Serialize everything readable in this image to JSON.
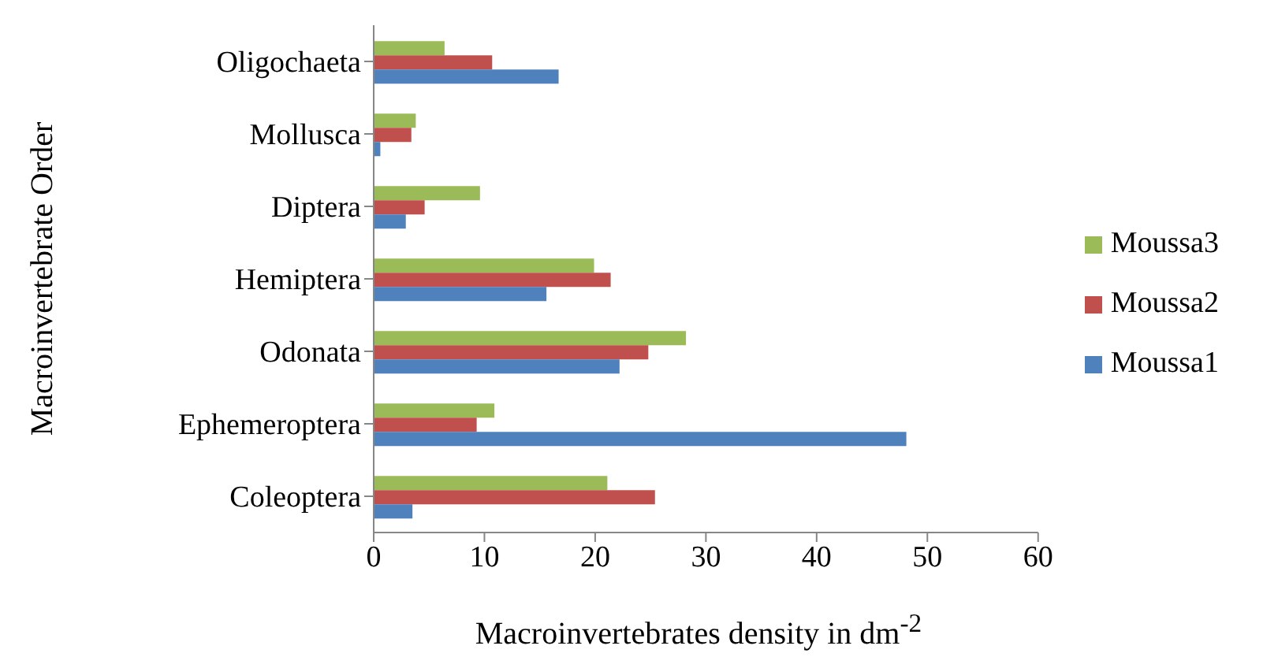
{
  "chart_data": {
    "type": "bar",
    "orientation": "horizontal",
    "xlabel": "Macroinvertebrates density in dm$^{-2}$",
    "ylabel": "Macroinvertebrate Order",
    "categories": [
      "Oligochaeta",
      "Mollusca",
      "Diptera",
      "Hemiptera",
      "Odonata",
      "Ephemeroptera",
      "Coleoptera"
    ],
    "series": [
      {
        "name": "Moussa3",
        "color": "#9bbb59",
        "values": [
          6.4,
          3.8,
          9.6,
          19.9,
          28.2,
          10.9,
          21.1
        ]
      },
      {
        "name": "Moussa2",
        "color": "#c0504d",
        "values": [
          10.7,
          3.4,
          4.6,
          21.4,
          24.8,
          9.3,
          25.4
        ]
      },
      {
        "name": "Moussa1",
        "color": "#4f81bd",
        "values": [
          16.7,
          0.6,
          2.9,
          15.6,
          22.2,
          48.1,
          3.5
        ]
      }
    ],
    "xlim": [
      0,
      60
    ],
    "xticks": [
      0,
      10,
      20,
      30,
      40,
      50,
      60
    ],
    "legend": "right"
  }
}
